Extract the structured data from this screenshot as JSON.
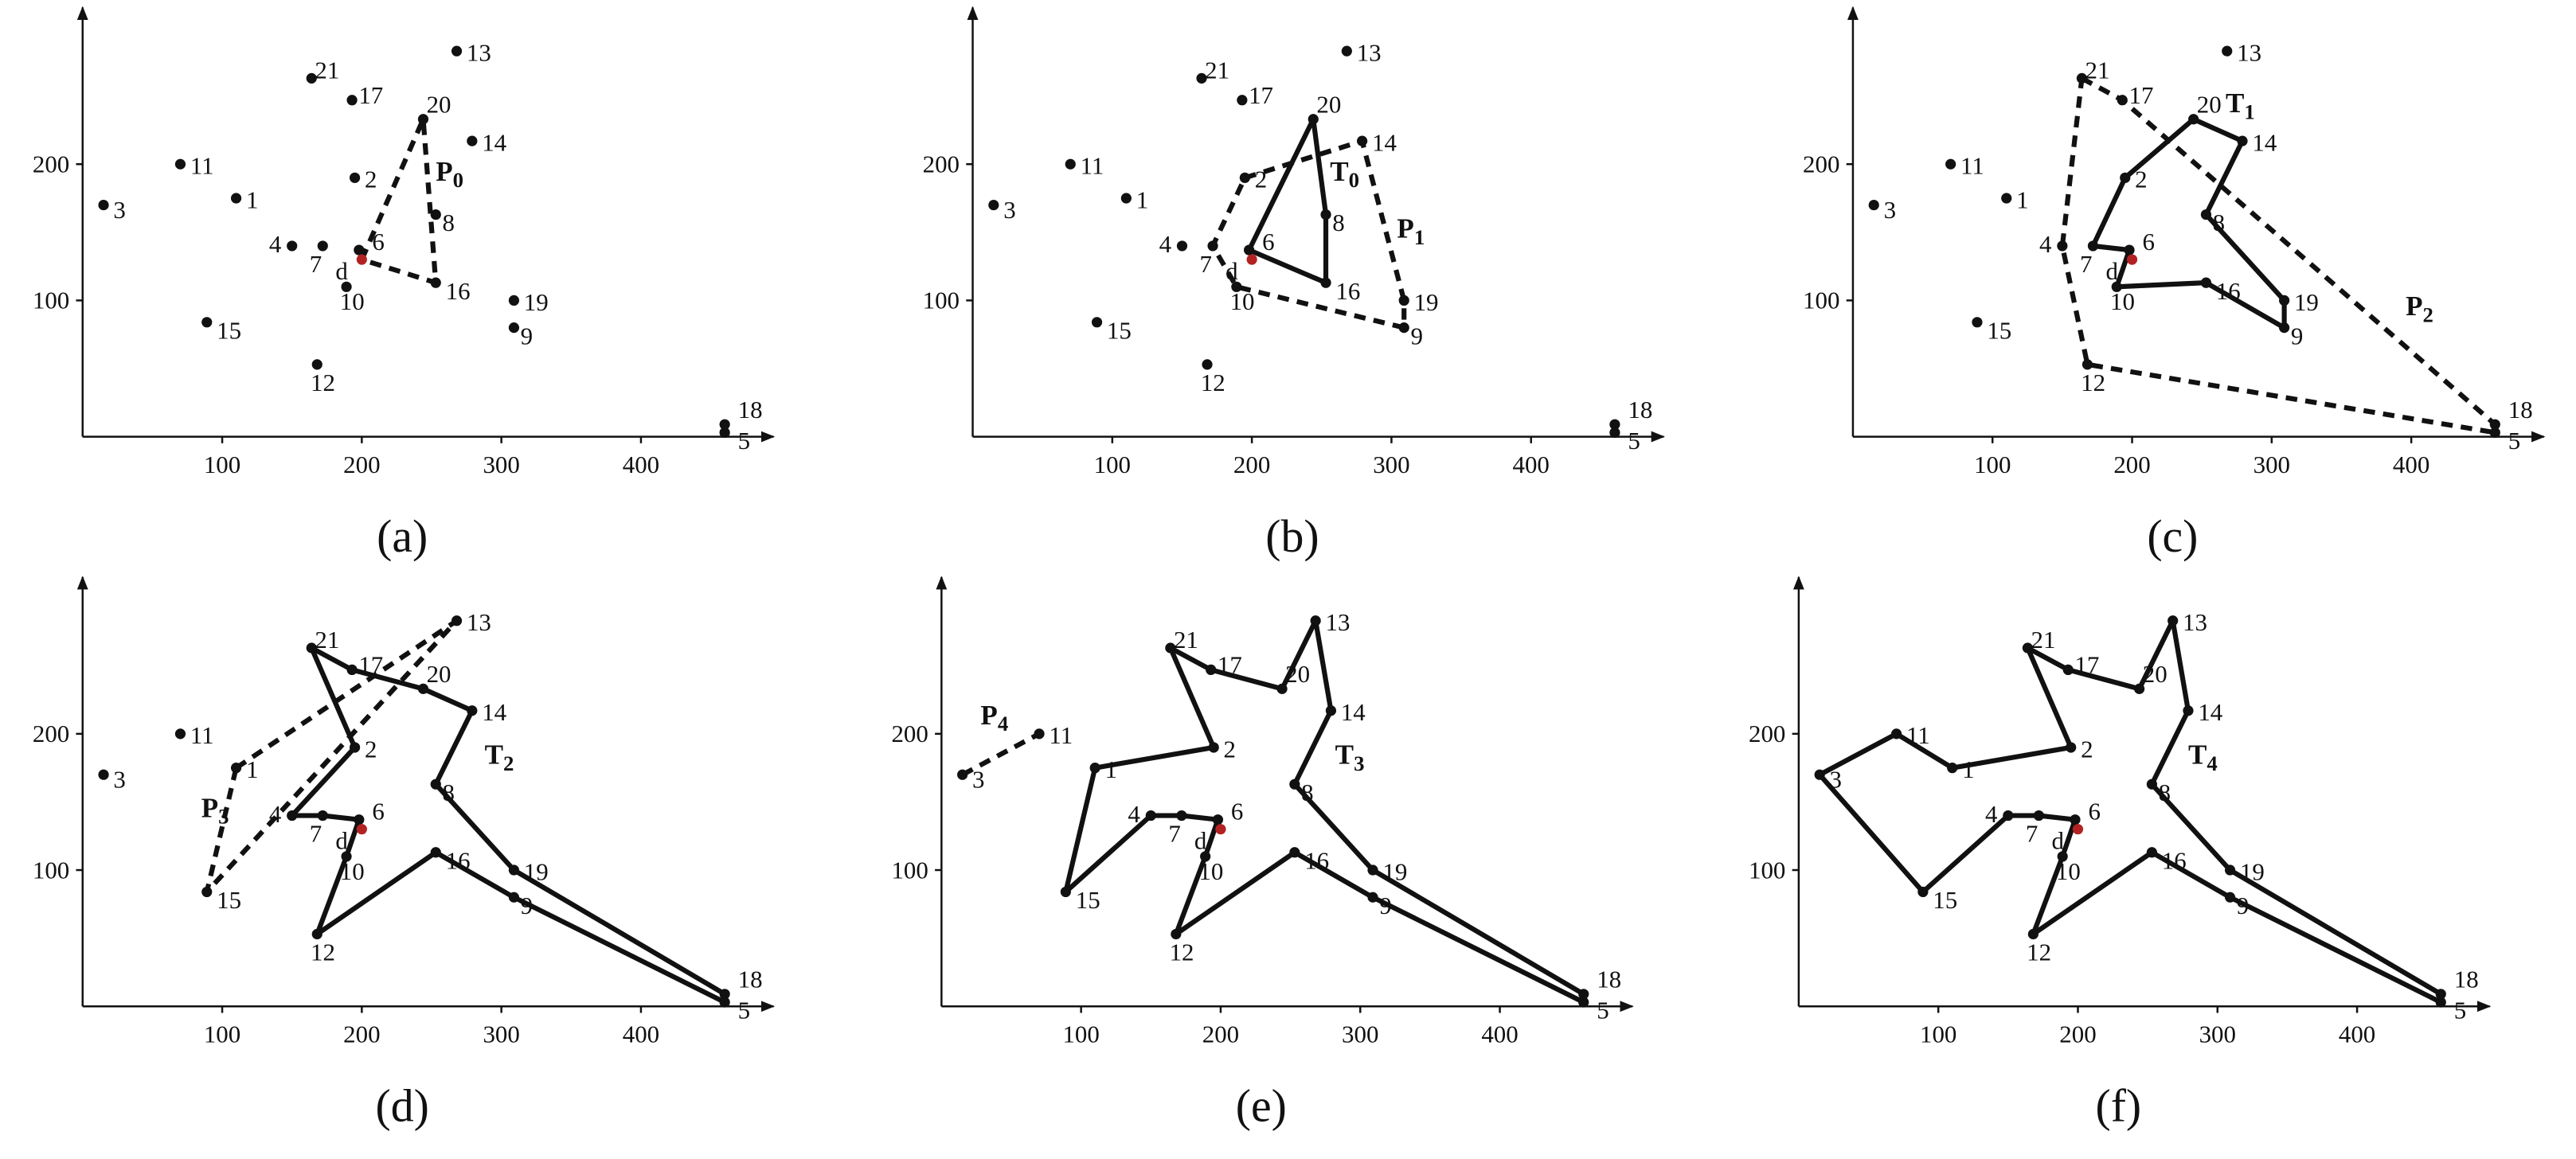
{
  "axes": {
    "xlim": [
      0,
      495
    ],
    "ylim": [
      0,
      315
    ],
    "xticks": [
      100,
      200,
      300,
      400
    ],
    "yticks": [
      100,
      200
    ]
  },
  "point_color": "#111111",
  "points": [
    {
      "label": "1",
      "x": 110,
      "y": 175
    },
    {
      "label": "2",
      "x": 195,
      "y": 190
    },
    {
      "label": "3",
      "x": 15,
      "y": 170
    },
    {
      "label": "4",
      "x": 150,
      "y": 140
    },
    {
      "label": "5",
      "x": 460,
      "y": 3
    },
    {
      "label": "6",
      "x": 198,
      "y": 137
    },
    {
      "label": "7",
      "x": 172,
      "y": 140
    },
    {
      "label": "8",
      "x": 253,
      "y": 163
    },
    {
      "label": "9",
      "x": 309,
      "y": 80
    },
    {
      "label": "10",
      "x": 189,
      "y": 110
    },
    {
      "label": "11",
      "x": 70,
      "y": 200
    },
    {
      "label": "12",
      "x": 168,
      "y": 53
    },
    {
      "label": "13",
      "x": 268,
      "y": 283
    },
    {
      "label": "14",
      "x": 279,
      "y": 217
    },
    {
      "label": "15",
      "x": 89,
      "y": 84
    },
    {
      "label": "16",
      "x": 253,
      "y": 113
    },
    {
      "label": "17",
      "x": 193,
      "y": 247
    },
    {
      "label": "18",
      "x": 460,
      "y": 9
    },
    {
      "label": "19",
      "x": 309,
      "y": 100
    },
    {
      "label": "20",
      "x": 244,
      "y": 233
    },
    {
      "label": "21",
      "x": 164,
      "y": 263
    },
    {
      "label": "d",
      "x": 200,
      "y": 130,
      "color": "#b22222"
    }
  ],
  "panels": [
    {
      "caption": "(a)",
      "solid": [],
      "dashed": [
        [
          21,
          19,
          15,
          21
        ]
      ],
      "annotations": [
        {
          "letter": "P",
          "sub": "0"
        }
      ]
    },
    {
      "caption": "(b)",
      "solid": [
        [
          5,
          19,
          7,
          15,
          5
        ]
      ],
      "dashed": [
        [
          1,
          13,
          18,
          8,
          9,
          6,
          1
        ]
      ],
      "annotations": [
        {
          "letter": "T",
          "sub": "0"
        },
        {
          "letter": "P",
          "sub": "1"
        }
      ]
    },
    {
      "caption": "(c)",
      "solid": [
        [
          5,
          9,
          15,
          8,
          18,
          7,
          13,
          19,
          1,
          6,
          5
        ]
      ],
      "dashed": [
        [
          20,
          16,
          17,
          4,
          11,
          3,
          20
        ]
      ],
      "annotations": [
        {
          "letter": "T",
          "sub": "1"
        },
        {
          "letter": "P",
          "sub": "2"
        }
      ]
    },
    {
      "caption": "(d)",
      "solid": [
        [
          20,
          16,
          19,
          13,
          7,
          18,
          17,
          4,
          8,
          15,
          11,
          9,
          5,
          6,
          3,
          1,
          20
        ]
      ],
      "dashed": [
        [
          0,
          12,
          14,
          0
        ]
      ],
      "annotations": [
        {
          "letter": "T",
          "sub": "2"
        },
        {
          "letter": "P",
          "sub": "3"
        }
      ]
    },
    {
      "caption": "(e)",
      "solid": [
        [
          20,
          16,
          19,
          12,
          13,
          7,
          18,
          17,
          4,
          8,
          15,
          11,
          9,
          5,
          6,
          3,
          14,
          0,
          1,
          20
        ]
      ],
      "dashed": [
        [
          2,
          10
        ]
      ],
      "annotations": [
        {
          "letter": "P",
          "sub": "4"
        },
        {
          "letter": "T",
          "sub": "3"
        }
      ]
    },
    {
      "caption": "(f)",
      "solid": [
        [
          20,
          16,
          19,
          12,
          13,
          7,
          18,
          17,
          4,
          8,
          15,
          11,
          9,
          5,
          6,
          3,
          14,
          2,
          10,
          0,
          1,
          20
        ]
      ],
      "dashed": [],
      "annotations": [
        {
          "letter": "T",
          "sub": "4"
        }
      ]
    }
  ]
}
